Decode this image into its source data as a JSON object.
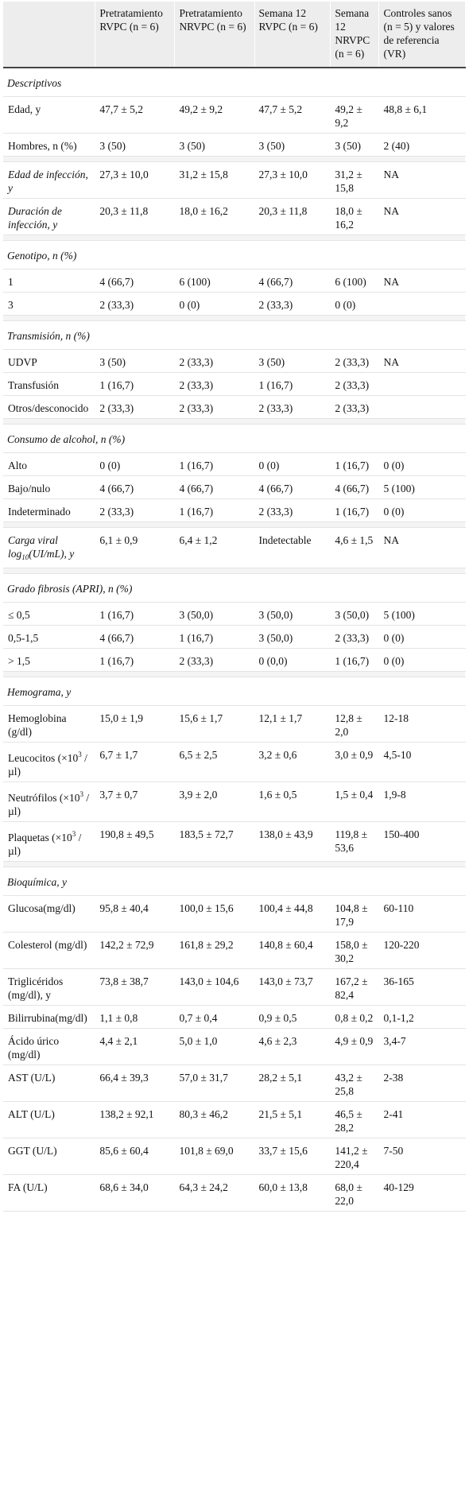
{
  "headers": [
    "",
    "Pretratamiento RVPC (n = 6)",
    "Pretratamiento NRVPC (n = 6)",
    "Semana 12 RVPC (n = 6)",
    "Semana 12 NRVPC (n = 6)",
    "Controles sanos (n = 5) y valores de referencia (VR)"
  ],
  "rows": [
    {
      "type": "section",
      "label": "Descriptivos"
    },
    {
      "type": "data",
      "label": "Edad, y",
      "cells": [
        "47,7 ± 5,2",
        "49,2 ± 9,2",
        "47,7 ± 5,2",
        "49,2 ± 9,2",
        "48,8 ± 6,1"
      ]
    },
    {
      "type": "data",
      "label": "Hombres, n (%)",
      "cells": [
        "3 (50)",
        "3 (50)",
        "3 (50)",
        "3 (50)",
        "2 (40)"
      ]
    },
    {
      "type": "spacer"
    },
    {
      "type": "data",
      "italic": true,
      "label": "Edad de infección, y",
      "cells": [
        "27,3 ± 10,0",
        "31,2 ± 15,8",
        "27,3 ± 10,0",
        "31,2 ± 15,8",
        "NA"
      ]
    },
    {
      "type": "data",
      "italic": true,
      "label": "Duración de infección, y",
      "cells": [
        "20,3 ± 11,8",
        "18,0 ± 16,2",
        "20,3 ± 11,8",
        "18,0 ± 16,2",
        "NA"
      ]
    },
    {
      "type": "spacer"
    },
    {
      "type": "section",
      "label": "Genotipo, n (%)"
    },
    {
      "type": "data",
      "label": "1",
      "cells": [
        "4 (66,7)",
        "6 (100)",
        "4 (66,7)",
        "6 (100)",
        "NA"
      ]
    },
    {
      "type": "data",
      "label": "3",
      "cells": [
        "2 (33,3)",
        "0 (0)",
        "2 (33,3)",
        "0 (0)",
        ""
      ]
    },
    {
      "type": "spacer"
    },
    {
      "type": "section",
      "label": "Transmisión, n (%)"
    },
    {
      "type": "data",
      "label": "UDVP",
      "cells": [
        "3 (50)",
        "2 (33,3)",
        "3 (50)",
        "2 (33,3)",
        "NA"
      ]
    },
    {
      "type": "data",
      "label": "Transfusión",
      "cells": [
        "1 (16,7)",
        "2 (33,3)",
        "1 (16,7)",
        "2 (33,3)",
        ""
      ]
    },
    {
      "type": "data",
      "label": "Otros/desconocido",
      "cells": [
        "2 (33,3)",
        "2 (33,3)",
        "2 (33,3)",
        "2 (33,3)",
        ""
      ]
    },
    {
      "type": "spacer"
    },
    {
      "type": "section",
      "label": "Consumo de alcohol, n (%)"
    },
    {
      "type": "data",
      "label": "Alto",
      "cells": [
        "0 (0)",
        "1 (16,7)",
        "0 (0)",
        "1 (16,7)",
        "0 (0)"
      ]
    },
    {
      "type": "data",
      "label": "Bajo/nulo",
      "cells": [
        "4 (66,7)",
        "4 (66,7)",
        "4 (66,7)",
        "4 (66,7)",
        "5 (100)"
      ]
    },
    {
      "type": "data",
      "label": "Indeterminado",
      "cells": [
        "2 (33,3)",
        "1 (16,7)",
        "2 (33,3)",
        "1 (16,7)",
        "0 (0)"
      ]
    },
    {
      "type": "spacer"
    },
    {
      "type": "data",
      "italic": true,
      "label": "Carga viral log",
      "labelSub": "10",
      "labelTail": "(UI/mL), y",
      "cells": [
        "6,1 ± 0,9",
        "6,4 ± 1,2",
        "Indetectable",
        "4,6 ± 1,5",
        "NA"
      ]
    },
    {
      "type": "spacer"
    },
    {
      "type": "section",
      "label": "Grado fibrosis (APRI), n (%)"
    },
    {
      "type": "data",
      "label": "≤ 0,5",
      "cells": [
        "1 (16,7)",
        "3 (50,0)",
        "3 (50,0)",
        "3 (50,0)",
        "5 (100)"
      ]
    },
    {
      "type": "data",
      "label": "0,5-1,5",
      "cells": [
        "4 (66,7)",
        "1 (16,7)",
        "3 (50,0)",
        "2 (33,3)",
        "0 (0)"
      ]
    },
    {
      "type": "data",
      "label": "> 1,5",
      "cells": [
        "1 (16,7)",
        "2 (33,3)",
        "0 (0,0)",
        "1 (16,7)",
        "0 (0)"
      ]
    },
    {
      "type": "spacer"
    },
    {
      "type": "section",
      "label": "Hemograma, y"
    },
    {
      "type": "data",
      "label": "Hemoglobina (g/dl)",
      "cells": [
        "15,0 ± 1,9",
        "15,6 ± 1,7",
        "12,1 ± 1,7",
        "12,8 ± 2,0",
        "12-18"
      ]
    },
    {
      "type": "data",
      "label": "Leucocitos (×10",
      "labelSup": "3",
      "labelTail": " /µl)",
      "cells": [
        "6,7 ± 1,7",
        "6,5 ± 2,5",
        "3,2 ± 0,6",
        "3,0 ± 0,9",
        "4,5-10"
      ]
    },
    {
      "type": "data",
      "label": "Neutrófilos (×10",
      "labelSup": "3",
      "labelTail": " /µl)",
      "cells": [
        "3,7 ± 0,7",
        "3,9 ± 2,0",
        "1,6 ± 0,5",
        "1,5 ± 0,4",
        "1,9-8"
      ]
    },
    {
      "type": "data",
      "label": "Plaquetas (×10",
      "labelSup": "3",
      "labelTail": " /µl)",
      "cells": [
        "190,8 ± 49,5",
        "183,5 ± 72,7",
        "138,0 ± 43,9",
        "119,8 ± 53,6",
        "150-400"
      ]
    },
    {
      "type": "spacer"
    },
    {
      "type": "section",
      "label": "Bioquímica, y"
    },
    {
      "type": "data",
      "label": "Glucosa(mg/dl)",
      "cells": [
        "95,8 ± 40,4",
        "100,0 ± 15,6",
        "100,4 ± 44,8",
        "104,8 ± 17,9",
        "60-110"
      ]
    },
    {
      "type": "data",
      "label": "Colesterol (mg/dl)",
      "cells": [
        "142,2 ± 72,9",
        "161,8 ± 29,2",
        "140,8 ± 60,4",
        "158,0 ± 30,2",
        "120-220"
      ]
    },
    {
      "type": "data",
      "label": "Triglicéridos (mg/dl), y",
      "cells": [
        "73,8 ± 38,7",
        "143,0 ± 104,6",
        "143,0 ± 73,7",
        "167,2 ± 82,4",
        "36-165"
      ]
    },
    {
      "type": "data",
      "label": "Bilirrubina(mg/dl)",
      "cells": [
        "1,1 ± 0,8",
        "0,7 ± 0,4",
        "0,9 ± 0,5",
        "0,8 ± 0,2",
        "0,1-1,2"
      ]
    },
    {
      "type": "data",
      "label": "Ácido úrico (mg/dl)",
      "cells": [
        "4,4 ± 2,1",
        "5,0 ± 1,0",
        "4,6 ± 2,3",
        "4,9 ± 0,9",
        "3,4-7"
      ]
    },
    {
      "type": "data",
      "label": "AST (U/L)",
      "cells": [
        "66,4 ± 39,3",
        "57,0 ± 31,7",
        "28,2 ± 5,1",
        "43,2 ± 25,8",
        "2-38"
      ]
    },
    {
      "type": "data",
      "label": "ALT (U/L)",
      "cells": [
        "138,2 ± 92,1",
        "80,3 ± 46,2",
        "21,5 ± 5,1",
        "46,5 ± 28,2",
        "2-41"
      ]
    },
    {
      "type": "data",
      "label": "GGT (U/L)",
      "cells": [
        "85,6 ± 60,4",
        "101,8 ± 69,0",
        "33,7 ± 15,6",
        "141,2 ± 220,4",
        "7-50"
      ]
    },
    {
      "type": "data",
      "label": "FA (U/L)",
      "cells": [
        "68,6 ± 34,0",
        "64,3 ± 24,2",
        "60,0 ± 13,8",
        "68,0 ± 22,0",
        "40-129"
      ]
    }
  ]
}
